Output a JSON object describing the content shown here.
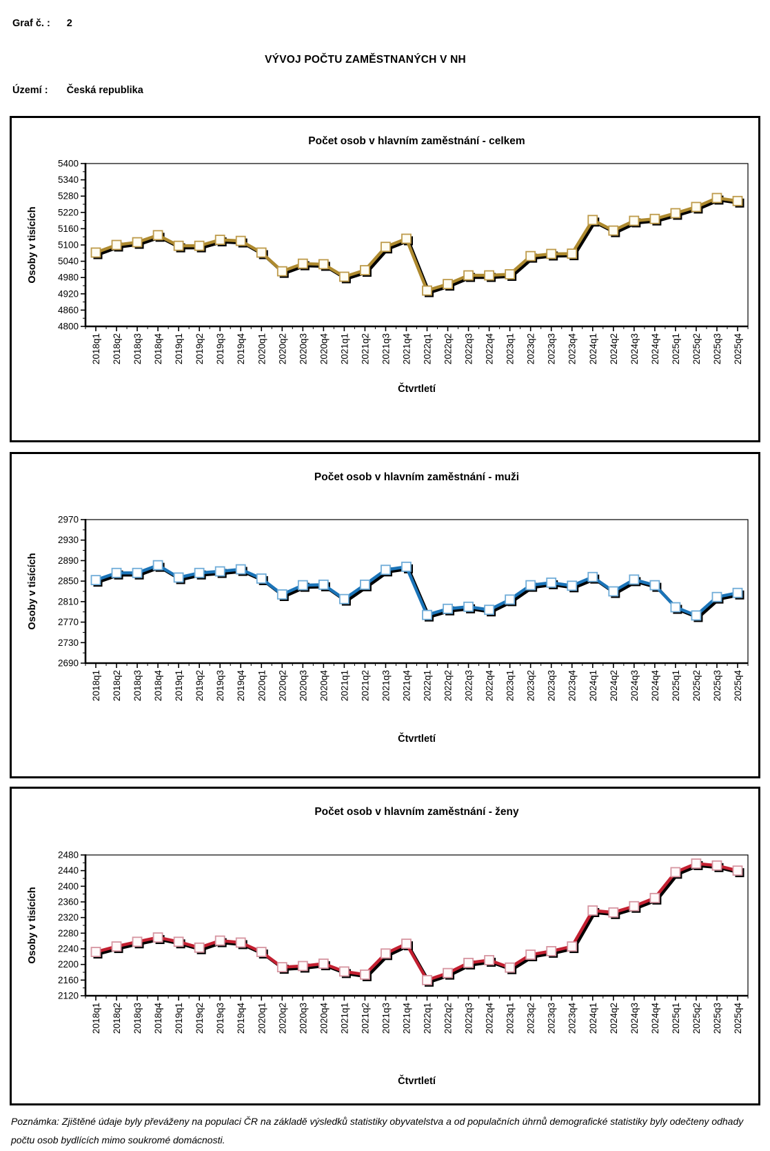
{
  "page": {
    "graf_label": "Graf č. :",
    "graf_number": "2",
    "main_title": "VÝVOJ POČTU ZAMĚSTNANÝCH V NH",
    "area_label": "Území :",
    "area_value": "Česká republika",
    "footer_note": "Poznámka: Zjištěné údaje byly převáženy na populaci ČR na základě výsledků statistiky obyvatelstva a od populačních úhrnů demografické statistiky byly odečteny odhady počtu osob bydlících mimo soukromé domácnosti."
  },
  "chart_data": [
    {
      "type": "line",
      "title": "Počet osob v hlavním zaměstnání - celkem",
      "ylabel": "Osoby v tisících",
      "xlabel": "Čtvrtletí",
      "ylim": [
        4800,
        5400
      ],
      "ytick_step": 60,
      "grid": false,
      "legend": "none",
      "line_color": "#AE8A2F",
      "marker_border_color": "#BD9A4A",
      "marker_fill": "#FFFDF3",
      "categories": [
        "2018q1",
        "2018q2",
        "2018q3",
        "2018q4",
        "2019q1",
        "2019q2",
        "2019q3",
        "2019q4",
        "2020q1",
        "2020q2",
        "2020q3",
        "2020q4",
        "2021q1",
        "2021q2",
        "2021q3",
        "2021q4",
        "2022q1",
        "2022q2",
        "2022q3",
        "2022q4",
        "2023q1",
        "2023q2",
        "2023q3",
        "2023q4",
        "2024q1",
        "2024q2",
        "2024q3",
        "2024q4",
        "2025q1",
        "2025q2",
        "2025q3",
        "2025q4"
      ],
      "values": [
        5072,
        5100,
        5110,
        5136,
        5097,
        5097,
        5119,
        5115,
        5072,
        5003,
        5031,
        5029,
        4983,
        5007,
        5093,
        5123,
        4932,
        4956,
        4988,
        4988,
        4992,
        5059,
        5067,
        5068,
        5192,
        5153,
        5189,
        5196,
        5217,
        5240,
        5273,
        5262
      ]
    },
    {
      "type": "line",
      "title": "Počet osob v hlavním zaměstnání - muži",
      "ylabel": "Osoby v tisících",
      "xlabel": "Čtvrtletí",
      "ylim": [
        2690,
        2970
      ],
      "ytick_step": 40,
      "grid": false,
      "legend": "none",
      "line_color": "#1B74B8",
      "marker_border_color": "#6FACD8",
      "marker_fill": "#FFFFFF",
      "categories": [
        "2018q1",
        "2018q2",
        "2018q3",
        "2018q4",
        "2019q1",
        "2019q2",
        "2019q3",
        "2019q4",
        "2020q1",
        "2020q2",
        "2020q3",
        "2020q4",
        "2021q1",
        "2021q2",
        "2021q3",
        "2021q4",
        "2022q1",
        "2022q2",
        "2022q3",
        "2022q4",
        "2023q1",
        "2023q2",
        "2023q3",
        "2023q4",
        "2024q1",
        "2024q2",
        "2024q3",
        "2024q4",
        "2025q1",
        "2025q2",
        "2025q3",
        "2025q4"
      ],
      "values": [
        2852,
        2866,
        2866,
        2881,
        2857,
        2866,
        2869,
        2873,
        2855,
        2824,
        2842,
        2843,
        2815,
        2843,
        2872,
        2878,
        2784,
        2796,
        2800,
        2794,
        2814,
        2842,
        2847,
        2841,
        2858,
        2830,
        2853,
        2842,
        2799,
        2783,
        2819,
        2827
      ]
    },
    {
      "type": "line",
      "title": "Počet osob v hlavním zaměstnání - ženy",
      "ylabel": "Osoby v tisících",
      "xlabel": "Čtvrtletí",
      "ylim": [
        2120,
        2480
      ],
      "ytick_step": 40,
      "grid": false,
      "legend": "none",
      "line_color": "#C32031",
      "marker_border_color": "#D695A1",
      "marker_fill": "#FFFAFA",
      "categories": [
        "2018q1",
        "2018q2",
        "2018q3",
        "2018q4",
        "2019q1",
        "2019q2",
        "2019q3",
        "2019q4",
        "2020q1",
        "2020q2",
        "2020q3",
        "2020q4",
        "2021q1",
        "2021q2",
        "2021q3",
        "2021q4",
        "2022q1",
        "2022q2",
        "2022q3",
        "2022q4",
        "2023q1",
        "2023q2",
        "2023q3",
        "2023q4",
        "2024q1",
        "2024q2",
        "2024q3",
        "2024q4",
        "2025q1",
        "2025q2",
        "2025q3",
        "2025q4"
      ],
      "values": [
        2232,
        2246,
        2258,
        2269,
        2258,
        2243,
        2261,
        2256,
        2232,
        2193,
        2196,
        2202,
        2182,
        2174,
        2228,
        2253,
        2160,
        2178,
        2204,
        2211,
        2192,
        2225,
        2234,
        2246,
        2338,
        2333,
        2349,
        2370,
        2436,
        2458,
        2453,
        2440
      ]
    }
  ]
}
